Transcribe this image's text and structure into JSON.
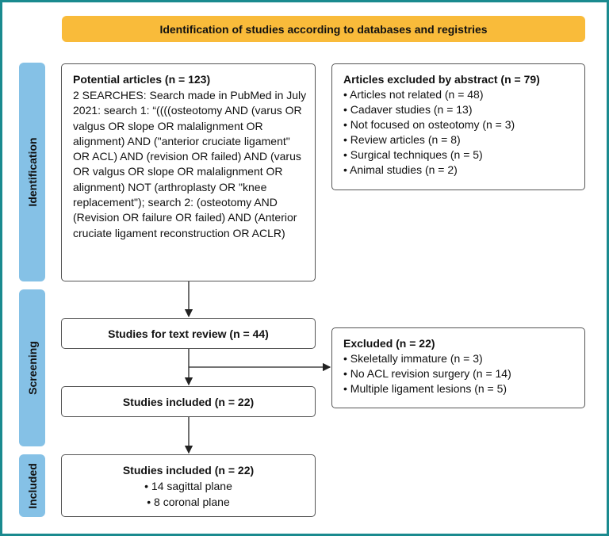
{
  "header": {
    "title": "Identification of studies according to databases and registries"
  },
  "phases": [
    "Identification",
    "Screening",
    "Included"
  ],
  "identification": {
    "title": "Potential articles (n = 123)",
    "text": "2 SEARCHES: Search made in PubMed in July 2021: search 1: “((((osteotomy AND (varus OR valgus OR slope OR malalign­ment OR alignment) AND (\"anterior cruciate ligament\" OR ACL) AND (revi­sion OR failed) AND (varus OR valgus OR slope OR malalignment OR alignment) NOT (arthroplasty OR \"knee replace­ment\"); search 2: (osteotomy AND (Revision OR failure OR failed) AND (Anterior cruciate ligament reconstruc­tion OR ACLR)"
  },
  "excluded_abstract": {
    "title": "Articles excluded by abstract (n = 79)",
    "items": [
      "Articles not related (n = 48)",
      "Cadaver studies (n = 13)",
      "Not focused on osteotomy (n = 3)",
      "Review articles (n = 8)",
      "Surgical techniques (n = 5)",
      "Animal studies (n = 2)"
    ]
  },
  "text_review": {
    "title": "Studies for text review (n = 44)"
  },
  "excluded": {
    "title": "Excluded (n = 22)",
    "items": [
      "Skeletally immature (n = 3)",
      "No ACL revision surgery (n = 14)",
      "Multiple ligament lesions (n = 5)"
    ]
  },
  "studies_included": {
    "title": "Studies included (n = 22)"
  },
  "final": {
    "title": "Studies included (n = 22)",
    "items": [
      "14 sagittal plane",
      "8 coronal plane"
    ]
  },
  "colors": {
    "frame": "#1a8a8f",
    "header": "#f9bb3a",
    "phase": "#85c1e6"
  }
}
